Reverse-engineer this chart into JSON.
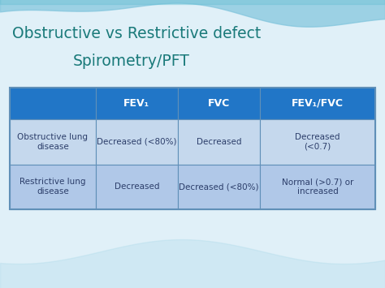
{
  "title_line1": "Obstructive vs Restrictive defect",
  "title_line2": "Spirometry/PFT",
  "title_color": "#1a7a7a",
  "header_bg": "#2176c7",
  "header_text_color": "#ffffff",
  "row1_bg": "#c5d8ed",
  "row2_bg": "#b0c8e8",
  "row_text_color": "#2c3e6a",
  "col_headers": [
    "FEV₁",
    "FVC",
    "FEV₁/FVC"
  ],
  "row_labels": [
    "Obstructive lung\ndisease",
    "Restrictive lung\ndisease"
  ],
  "cell_data": [
    [
      "Decreased (<80%)",
      "Decreased",
      "Decreased\n(<0.7)"
    ],
    [
      "Decreased",
      "Decreased (<80%)",
      "Normal (>0.7) or\nincreased"
    ]
  ],
  "table_border_color": "#6090b8",
  "bg_main": "#cde8f0",
  "bg_bottom": "#e0f0f8",
  "wave_color": "#a8d8e8",
  "wave_color2": "#7fc4dc"
}
